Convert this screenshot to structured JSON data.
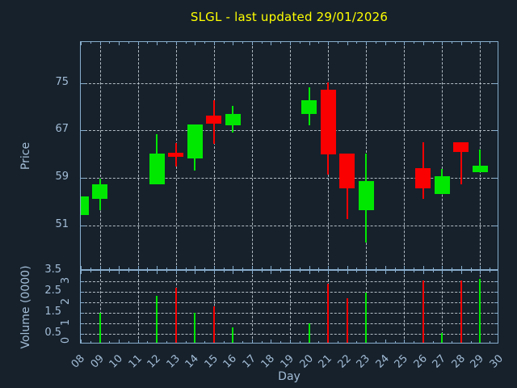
{
  "title": {
    "text": "SLGL - last updated 29/01/2026"
  },
  "colors": {
    "background": "#16212c",
    "frame": "#88adcc",
    "text": "#a3bdd6",
    "title": "#ffff00",
    "grid": "#ccd6dd",
    "up": "#00e800",
    "down": "#fa0000"
  },
  "price_axis": {
    "label": "Price",
    "tick_labels": [
      "75",
      "67",
      "59",
      "51"
    ],
    "tick_values": [
      75,
      67,
      59,
      51
    ]
  },
  "volume_axis": {
    "label": "Volume (0000)",
    "horizontal_tick_labels": [
      "3.5",
      "2.5",
      "1.5",
      "0.5"
    ],
    "horizontal_tick_values": [
      3.5,
      2.5,
      1.5,
      0.5
    ],
    "rotated_tick_labels": [
      "3",
      "2",
      "1",
      "0"
    ],
    "rotated_tick_values": [
      3,
      2,
      1,
      0
    ]
  },
  "x_axis": {
    "label": "Day",
    "tick_labels": [
      "08",
      "09",
      "10",
      "11",
      "12",
      "13",
      "14",
      "15",
      "16",
      "17",
      "18",
      "19",
      "20",
      "21",
      "22",
      "23",
      "24",
      "25",
      "26",
      "27",
      "28",
      "29",
      "30"
    ],
    "tick_values": [
      8,
      9,
      10,
      11,
      12,
      13,
      14,
      15,
      16,
      17,
      18,
      19,
      20,
      21,
      22,
      23,
      24,
      25,
      26,
      27,
      28,
      29,
      30
    ]
  },
  "chart_data": [
    {
      "type": "candlestick",
      "title": "SLGL - last updated 29/01/2026",
      "xlabel": "Day",
      "ylabel": "Price",
      "xlim": [
        8,
        30
      ],
      "ylim": [
        43,
        82
      ],
      "yticks": [
        51,
        59,
        67,
        75
      ],
      "grid": true,
      "grid_x_days": [
        9,
        11,
        13,
        15,
        17,
        19,
        21,
        23,
        25,
        27,
        29
      ],
      "series": [
        {
          "day": 8,
          "open": 52.7,
          "high": 55.8,
          "low": 52.7,
          "close": 55.8
        },
        {
          "day": 9,
          "open": 55.4,
          "high": 58.9,
          "low": 53.5,
          "close": 57.9
        },
        {
          "day": 12,
          "open": 57.9,
          "high": 66.4,
          "low": 57.9,
          "close": 63.1
        },
        {
          "day": 13,
          "open": 63.2,
          "high": 64.9,
          "low": 60.9,
          "close": 62.5
        },
        {
          "day": 14,
          "open": 62.3,
          "high": 68.0,
          "low": 60.2,
          "close": 68.0
        },
        {
          "day": 15,
          "open": 69.5,
          "high": 72.1,
          "low": 64.7,
          "close": 68.1
        },
        {
          "day": 16,
          "open": 67.8,
          "high": 71.1,
          "low": 66.6,
          "close": 69.7
        },
        {
          "day": 20,
          "open": 69.8,
          "high": 74.3,
          "low": 67.9,
          "close": 72.1
        },
        {
          "day": 21,
          "open": 73.8,
          "high": 75.1,
          "low": 59.5,
          "close": 62.9
        },
        {
          "day": 22,
          "open": 63.1,
          "high": 63.1,
          "low": 52.0,
          "close": 57.2
        },
        {
          "day": 23,
          "open": 53.5,
          "high": 63.1,
          "low": 48.1,
          "close": 58.4
        },
        {
          "day": 26,
          "open": 60.6,
          "high": 65.0,
          "low": 55.4,
          "close": 57.2
        },
        {
          "day": 27,
          "open": 56.2,
          "high": 60.5,
          "low": 56.2,
          "close": 59.2
        },
        {
          "day": 28,
          "open": 65.0,
          "high": 65.0,
          "low": 57.9,
          "close": 63.3
        },
        {
          "day": 29,
          "open": 59.9,
          "high": 63.8,
          "low": 59.9,
          "close": 61.0
        }
      ]
    },
    {
      "type": "bar",
      "xlabel": "Day",
      "ylabel": "Volume (0000)",
      "xlim": [
        8,
        30
      ],
      "ylim": [
        0,
        3.5
      ],
      "yticks": [
        0,
        0.5,
        1,
        1.5,
        2,
        2.5,
        3,
        3.5
      ],
      "grid": true,
      "bars": [
        {
          "day": 9,
          "value": 1.5,
          "direction": "up"
        },
        {
          "day": 12,
          "value": 2.3,
          "direction": "up"
        },
        {
          "day": 13,
          "value": 2.7,
          "direction": "down"
        },
        {
          "day": 14,
          "value": 1.5,
          "direction": "up"
        },
        {
          "day": 15,
          "value": 1.8,
          "direction": "down"
        },
        {
          "day": 16,
          "value": 0.8,
          "direction": "up"
        },
        {
          "day": 20,
          "value": 1.0,
          "direction": "up"
        },
        {
          "day": 21,
          "value": 2.9,
          "direction": "down"
        },
        {
          "day": 22,
          "value": 2.2,
          "direction": "down"
        },
        {
          "day": 23,
          "value": 2.45,
          "direction": "up"
        },
        {
          "day": 26,
          "value": 3.05,
          "direction": "down"
        },
        {
          "day": 27,
          "value": 0.55,
          "direction": "up"
        },
        {
          "day": 28,
          "value": 3.05,
          "direction": "down"
        },
        {
          "day": 29,
          "value": 3.1,
          "direction": "up"
        }
      ]
    }
  ]
}
